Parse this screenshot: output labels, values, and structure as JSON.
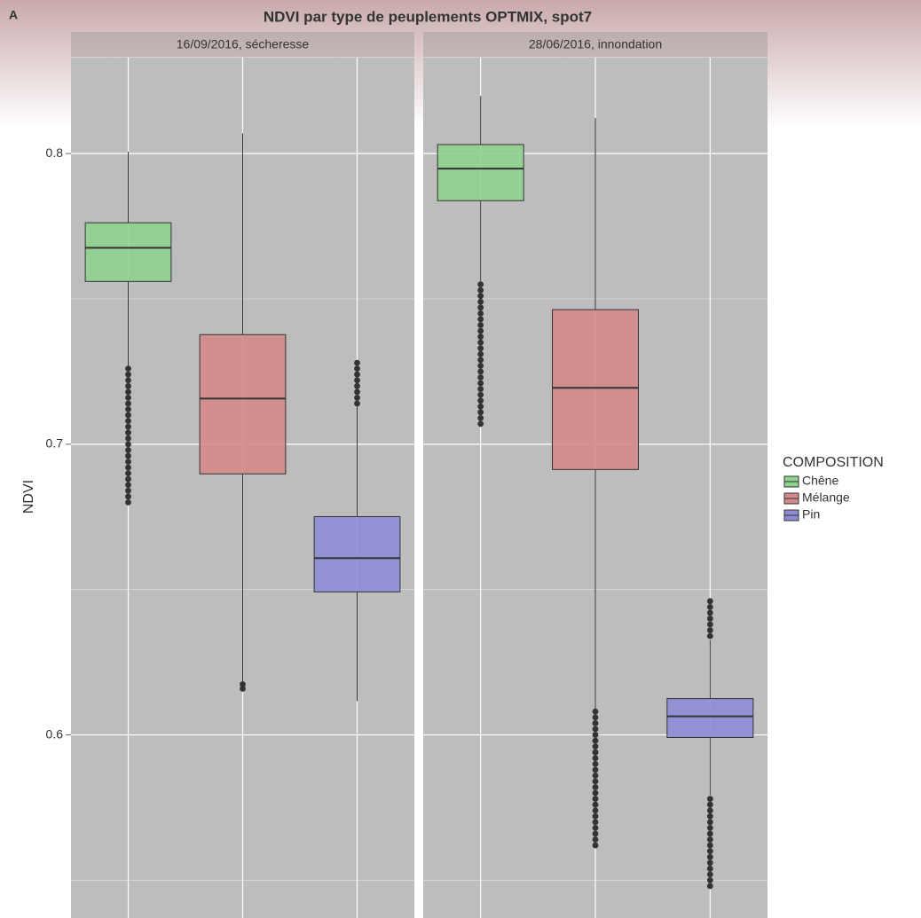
{
  "chart_data": {
    "type": "boxplot",
    "tag": "A",
    "title": "NDVI par type de peuplements OPTMIX, spot7",
    "ylabel": "NDVI",
    "ylim": [
      0.537,
      0.833
    ],
    "yticks": [
      0.6,
      0.7,
      0.8
    ],
    "minor_yticks": [
      0.55,
      0.65,
      0.75
    ],
    "grid": true,
    "legend_title": "COMPOSITION",
    "legend_position": "right",
    "series": [
      {
        "name": "Chêne",
        "color": "#8fd18f"
      },
      {
        "name": "Mélange",
        "color": "#d48a8a"
      },
      {
        "name": "Pin",
        "color": "#8c8cd6"
      }
    ],
    "facets": [
      {
        "title": "16/09/2016, sécheresse",
        "boxes": [
          {
            "whisker_low": 0.7267,
            "q1": 0.756,
            "median": 0.7676,
            "q3": 0.7762,
            "whisker_high": 0.8006,
            "outliers": [
              0.726,
              0.724,
              0.722,
              0.72,
              0.718,
              0.716,
              0.714,
              0.712,
              0.71,
              0.708,
              0.706,
              0.704,
              0.702,
              0.7,
              0.698,
              0.696,
              0.694,
              0.692,
              0.69,
              0.688,
              0.686,
              0.684,
              0.682,
              0.68
            ]
          },
          {
            "whisker_low": 0.618,
            "q1": 0.6898,
            "median": 0.7157,
            "q3": 0.7377,
            "whisker_high": 0.807,
            "outliers": [
              0.6174,
              0.6159
            ]
          },
          {
            "whisker_low": 0.6116,
            "q1": 0.6492,
            "median": 0.6608,
            "q3": 0.6751,
            "whisker_high": 0.7133,
            "outliers": [
              0.728,
              0.726,
              0.724,
              0.722,
              0.72,
              0.718,
              0.716,
              0.714
            ]
          }
        ]
      },
      {
        "title": "28/06/2016, innondation",
        "boxes": [
          {
            "whisker_low": 0.756,
            "q1": 0.7838,
            "median": 0.7948,
            "q3": 0.8031,
            "whisker_high": 0.8198,
            "outliers": [
              0.755,
              0.753,
              0.751,
              0.749,
              0.747,
              0.745,
              0.743,
              0.741,
              0.739,
              0.737,
              0.735,
              0.733,
              0.731,
              0.729,
              0.727,
              0.725,
              0.723,
              0.721,
              0.719,
              0.717,
              0.715,
              0.713,
              0.711,
              0.709,
              0.707
            ]
          },
          {
            "whisker_low": 0.6082,
            "q1": 0.6913,
            "median": 0.7194,
            "q3": 0.7463,
            "whisker_high": 0.8122,
            "outliers": [
              0.608,
              0.606,
              0.604,
              0.602,
              0.6,
              0.598,
              0.596,
              0.594,
              0.592,
              0.59,
              0.588,
              0.586,
              0.584,
              0.582,
              0.58,
              0.578,
              0.576,
              0.574,
              0.572,
              0.57,
              0.568,
              0.566,
              0.564,
              0.562
            ]
          },
          {
            "whisker_low": 0.5792,
            "q1": 0.5991,
            "median": 0.6064,
            "q3": 0.6125,
            "whisker_high": 0.6327,
            "outliers": [
              0.646,
              0.644,
              0.642,
              0.64,
              0.638,
              0.636,
              0.634,
              0.578,
              0.576,
              0.574,
              0.572,
              0.57,
              0.568,
              0.566,
              0.564,
              0.562,
              0.56,
              0.558,
              0.556,
              0.554,
              0.552,
              0.55,
              0.548
            ]
          }
        ]
      }
    ]
  }
}
